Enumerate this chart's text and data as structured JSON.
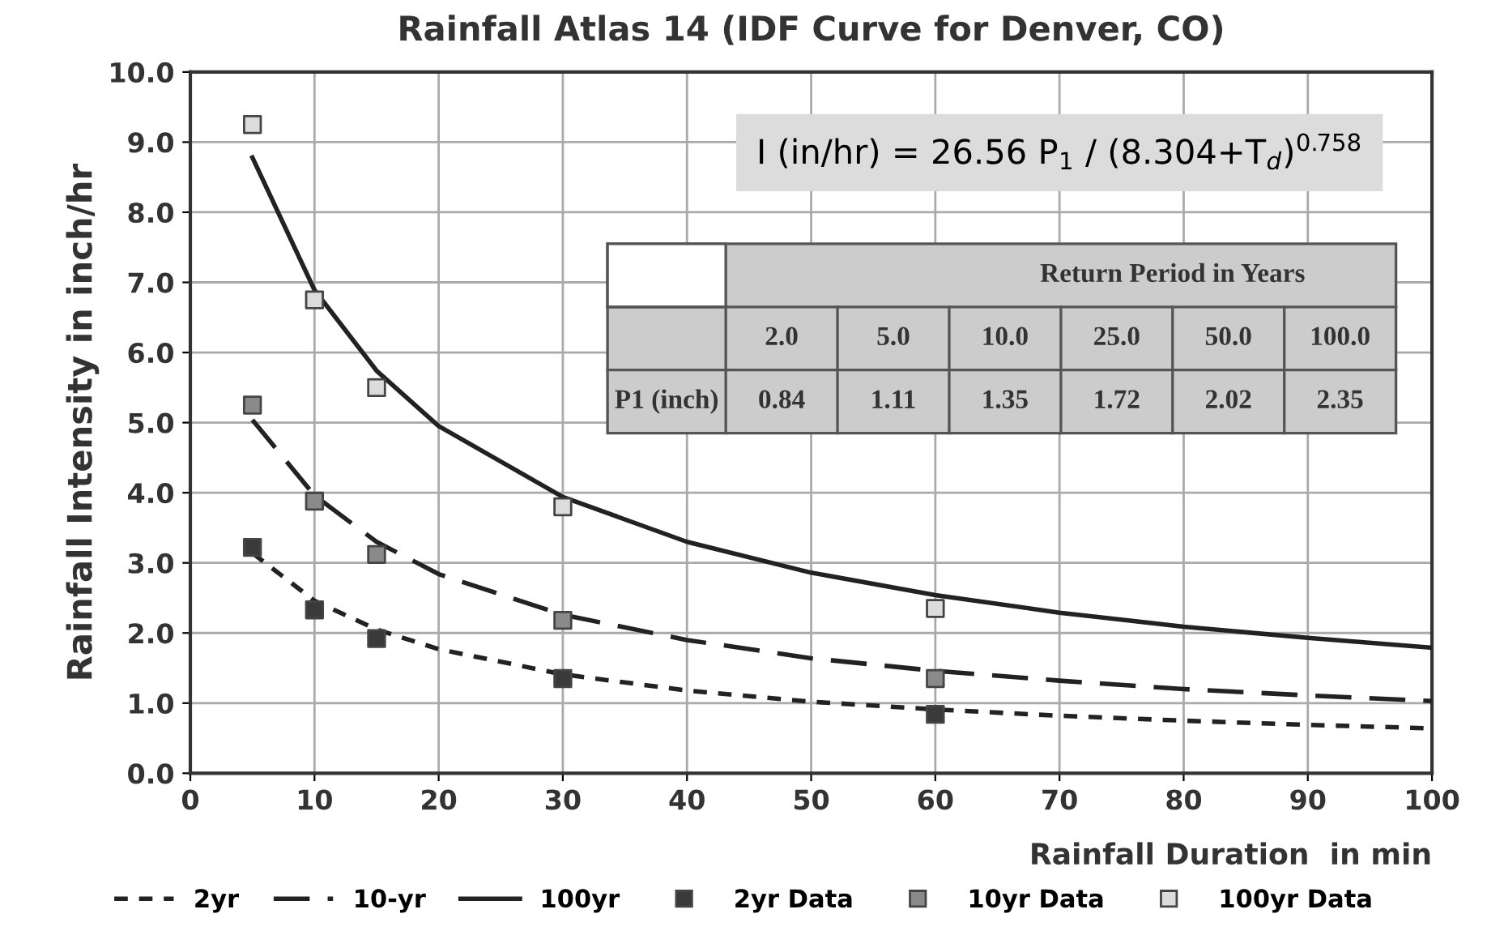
{
  "chart_data": {
    "type": "line",
    "title": "Rainfall Atlas 14 (IDF Curve for Denver, CO)",
    "xlabel": "Rainfall Duration  in min",
    "ylabel": "Rainfall Intensity in inch/hr",
    "xlim": [
      0,
      100
    ],
    "xticks": [
      0,
      10,
      20,
      30,
      40,
      50,
      60,
      70,
      80,
      90,
      100
    ],
    "ylim": [
      0,
      10
    ],
    "yticks": [
      {
        "value": 0,
        "label": "0.0"
      },
      {
        "value": 1,
        "label": "1.0"
      },
      {
        "value": 2,
        "label": "2.0"
      },
      {
        "value": 3,
        "label": "3.0"
      },
      {
        "value": 4,
        "label": "4.0"
      },
      {
        "value": 5,
        "label": "5.0"
      },
      {
        "value": 6,
        "label": "6.0"
      },
      {
        "value": 7,
        "label": "7.0"
      },
      {
        "value": 8,
        "label": "8.0"
      },
      {
        "value": 9,
        "label": "9.0"
      },
      {
        "value": 10,
        "label": "10.0"
      }
    ],
    "grid": true,
    "legend": "bottom",
    "series": [
      {
        "name": "2yr",
        "color": "#222222",
        "line_style": "dotted",
        "marker": "none",
        "x": [
          5,
          10,
          15,
          20,
          30,
          40,
          50,
          60,
          70,
          80,
          90,
          100
        ],
        "values": [
          3.14,
          2.46,
          2.05,
          1.77,
          1.41,
          1.18,
          1.02,
          0.91,
          0.82,
          0.75,
          0.69,
          0.64
        ]
      },
      {
        "name": "10-yr",
        "color": "#222222",
        "line_style": "dashed",
        "marker": "none",
        "x": [
          5,
          10,
          15,
          20,
          30,
          40,
          50,
          60,
          70,
          80,
          90,
          100
        ],
        "values": [
          5.04,
          3.96,
          3.3,
          2.84,
          2.26,
          1.9,
          1.64,
          1.46,
          1.32,
          1.2,
          1.11,
          1.03
        ]
      },
      {
        "name": "100yr",
        "color": "#222222",
        "line_style": "solid",
        "marker": "none",
        "x": [
          5,
          10,
          15,
          20,
          30,
          40,
          50,
          60,
          70,
          80,
          90,
          100
        ],
        "values": [
          8.78,
          6.89,
          5.74,
          4.95,
          3.94,
          3.3,
          2.86,
          2.54,
          2.29,
          2.09,
          1.93,
          1.79
        ]
      },
      {
        "name": "2yr Data",
        "type": "scatter",
        "color": "#3a3a3a",
        "marker": "square",
        "x": [
          5,
          10,
          15,
          30,
          60
        ],
        "values": [
          3.22,
          2.33,
          1.92,
          1.35,
          0.84
        ]
      },
      {
        "name": "10yr Data",
        "type": "scatter",
        "color": "#8a8a8a",
        "marker": "square",
        "x": [
          5,
          10,
          15,
          30,
          60
        ],
        "values": [
          5.25,
          3.88,
          3.12,
          2.18,
          1.35
        ]
      },
      {
        "name": "100yr Data",
        "type": "scatter",
        "color": "#dcdcdc",
        "marker": "square",
        "x": [
          5,
          10,
          15,
          30,
          60
        ],
        "values": [
          9.25,
          6.75,
          5.5,
          3.8,
          2.35
        ]
      }
    ],
    "annotations": [
      "I (in/hr) = 26.56 P$_{1}$ / (8.304+T$_{d}$)$^{0.758}$",
      "Return Period in Years",
      "2.0",
      "5.0",
      "10.0",
      "25.0",
      "50.0",
      "100.0",
      "P1 (inch)",
      "0.84",
      "1.11",
      "1.35",
      "1.72",
      "2.02",
      "2.35"
    ]
  }
}
